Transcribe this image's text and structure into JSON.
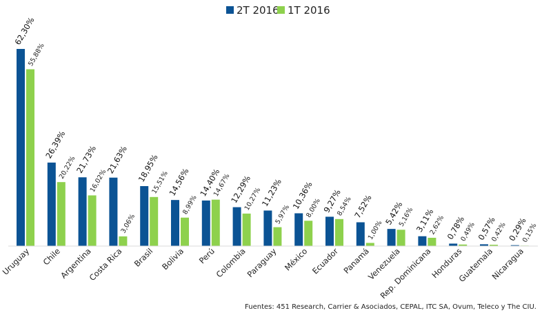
{
  "chart_data": {
    "type": "bar",
    "categories": [
      "Uruguay",
      "Chile",
      "Argentina",
      "Costa Rica",
      "Brasil",
      "Bolivia",
      "Perú",
      "Colombia",
      "Paraguay",
      "México",
      "Ecuador",
      "Panamá",
      "Venezuela",
      "Rep. Dominicana",
      "Honduras",
      "Guatemala",
      "Nicaragua"
    ],
    "series": [
      {
        "name": "2T 2016",
        "color": "#0b5394",
        "values": [
          62.3,
          26.39,
          21.73,
          21.63,
          18.95,
          14.56,
          14.4,
          12.29,
          11.23,
          10.36,
          9.27,
          7.52,
          5.42,
          3.11,
          0.78,
          0.57,
          0.29
        ],
        "labels": [
          "62,30%",
          "26,39%",
          "21,73%",
          "21,63%",
          "18,95%",
          "14,56%",
          "14,40%",
          "12,29%",
          "11,23%",
          "10,36%",
          "9,27%",
          "7,52%",
          "5,42%",
          "3,11%",
          "0,78%",
          "0,57%",
          "0,29%"
        ]
      },
      {
        "name": "1T 2016",
        "color": "#8ed14d",
        "values": [
          55.88,
          20.22,
          16.02,
          3.06,
          15.51,
          8.99,
          14.67,
          10.27,
          5.97,
          8.0,
          8.54,
          1.0,
          5.16,
          2.62,
          0.49,
          0.42,
          0.15
        ],
        "labels": [
          "55,88%",
          "20,22%",
          "16,02%",
          "3,06%",
          "15,51%",
          "8,99%",
          "14,67%",
          "10,27%",
          "5,97%",
          "8,00%",
          "8,54%",
          "1,00%",
          "5,16%",
          "2,62%",
          "0,49%",
          "0,42%",
          "0,15%"
        ]
      }
    ],
    "ylim": [
      0,
      62.3
    ],
    "grid": false,
    "legend_position": "top-center"
  },
  "source": "Fuentes: 451 Research,  Carrier & Asociados, CEPAL, ITC SA, Ovum, Teleco y The CIU."
}
